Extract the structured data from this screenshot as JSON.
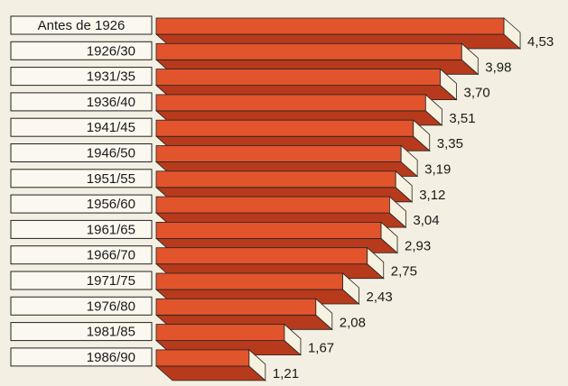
{
  "chart_data": {
    "type": "bar",
    "orientation": "horizontal",
    "categories": [
      "Antes de 1926",
      "1926/30",
      "1931/35",
      "1936/40",
      "1941/45",
      "1946/50",
      "1951/55",
      "1956/60",
      "1961/65",
      "1966/70",
      "1971/75",
      "1976/80",
      "1981/85",
      "1986/90"
    ],
    "values": [
      4.53,
      3.98,
      3.7,
      3.51,
      3.35,
      3.19,
      3.12,
      3.04,
      2.93,
      2.75,
      2.43,
      2.08,
      1.67,
      1.21
    ],
    "value_labels": [
      "4,53",
      "3,98",
      "3,70",
      "3,51",
      "3,35",
      "3,19",
      "3,12",
      "3,04",
      "2,93",
      "2,75",
      "2,43",
      "2,08",
      "1,67",
      "1,21"
    ],
    "color": "#e2542c"
  }
}
